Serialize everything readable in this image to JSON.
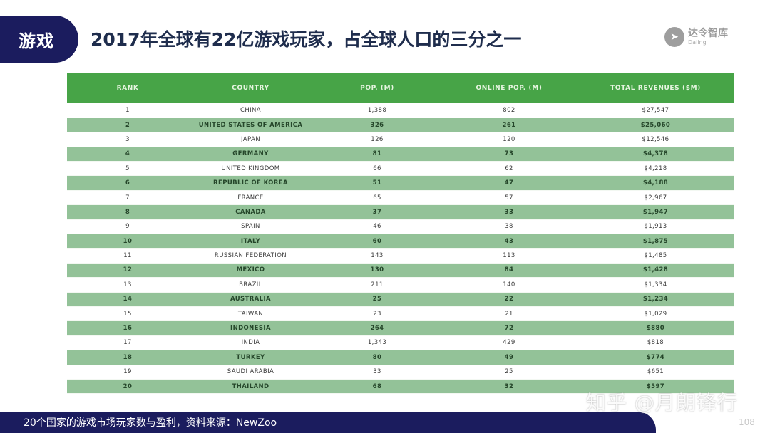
{
  "header": {
    "section_badge": "游戏",
    "title": "2017年全球有22亿游戏玩家，占全球人口的三分之一",
    "logo": {
      "icon": "rocket-icon",
      "name_cn": "达令智库",
      "name_en": "Daling"
    }
  },
  "table": {
    "columns": [
      "RANK",
      "COUNTRY",
      "POP. (M)",
      "ONLINE POP. (M)",
      "TOTAL REVENUES ($M)"
    ],
    "rows": [
      {
        "rank": "1",
        "country": "CHINA",
        "pop": "1,388",
        "online": "802",
        "revenue": "$27,547"
      },
      {
        "rank": "2",
        "country": "UNITED STATES OF AMERICA",
        "pop": "326",
        "online": "261",
        "revenue": "$25,060"
      },
      {
        "rank": "3",
        "country": "JAPAN",
        "pop": "126",
        "online": "120",
        "revenue": "$12,546"
      },
      {
        "rank": "4",
        "country": "GERMANY",
        "pop": "81",
        "online": "73",
        "revenue": "$4,378"
      },
      {
        "rank": "5",
        "country": "UNITED KINGDOM",
        "pop": "66",
        "online": "62",
        "revenue": "$4,218"
      },
      {
        "rank": "6",
        "country": "REPUBLIC OF KOREA",
        "pop": "51",
        "online": "47",
        "revenue": "$4,188"
      },
      {
        "rank": "7",
        "country": "FRANCE",
        "pop": "65",
        "online": "57",
        "revenue": "$2,967"
      },
      {
        "rank": "8",
        "country": "CANADA",
        "pop": "37",
        "online": "33",
        "revenue": "$1,947"
      },
      {
        "rank": "9",
        "country": "SPAIN",
        "pop": "46",
        "online": "38",
        "revenue": "$1,913"
      },
      {
        "rank": "10",
        "country": "ITALY",
        "pop": "60",
        "online": "43",
        "revenue": "$1,875"
      },
      {
        "rank": "11",
        "country": "RUSSIAN FEDERATION",
        "pop": "143",
        "online": "113",
        "revenue": "$1,485"
      },
      {
        "rank": "12",
        "country": "MEXICO",
        "pop": "130",
        "online": "84",
        "revenue": "$1,428"
      },
      {
        "rank": "13",
        "country": "BRAZIL",
        "pop": "211",
        "online": "140",
        "revenue": "$1,334"
      },
      {
        "rank": "14",
        "country": "AUSTRALIA",
        "pop": "25",
        "online": "22",
        "revenue": "$1,234"
      },
      {
        "rank": "15",
        "country": "TAIWAN",
        "pop": "23",
        "online": "21",
        "revenue": "$1,029"
      },
      {
        "rank": "16",
        "country": "INDONESIA",
        "pop": "264",
        "online": "72",
        "revenue": "$880"
      },
      {
        "rank": "17",
        "country": "INDIA",
        "pop": "1,343",
        "online": "429",
        "revenue": "$818"
      },
      {
        "rank": "18",
        "country": "TURKEY",
        "pop": "80",
        "online": "49",
        "revenue": "$774"
      },
      {
        "rank": "19",
        "country": "SAUDI ARABIA",
        "pop": "33",
        "online": "25",
        "revenue": "$651"
      },
      {
        "rank": "20",
        "country": "THAILAND",
        "pop": "68",
        "online": "32",
        "revenue": "$597"
      }
    ]
  },
  "footer": {
    "caption": "20个国家的游戏市场玩家数与盈利，资料来源：NewZoo",
    "watermark": "知乎 @月朗锋行",
    "page_number": "108"
  },
  "colors": {
    "navy": "#1b1c5e",
    "header_green": "#47a447",
    "row_green": "#93c298",
    "title_text": "#1f2d4d"
  }
}
